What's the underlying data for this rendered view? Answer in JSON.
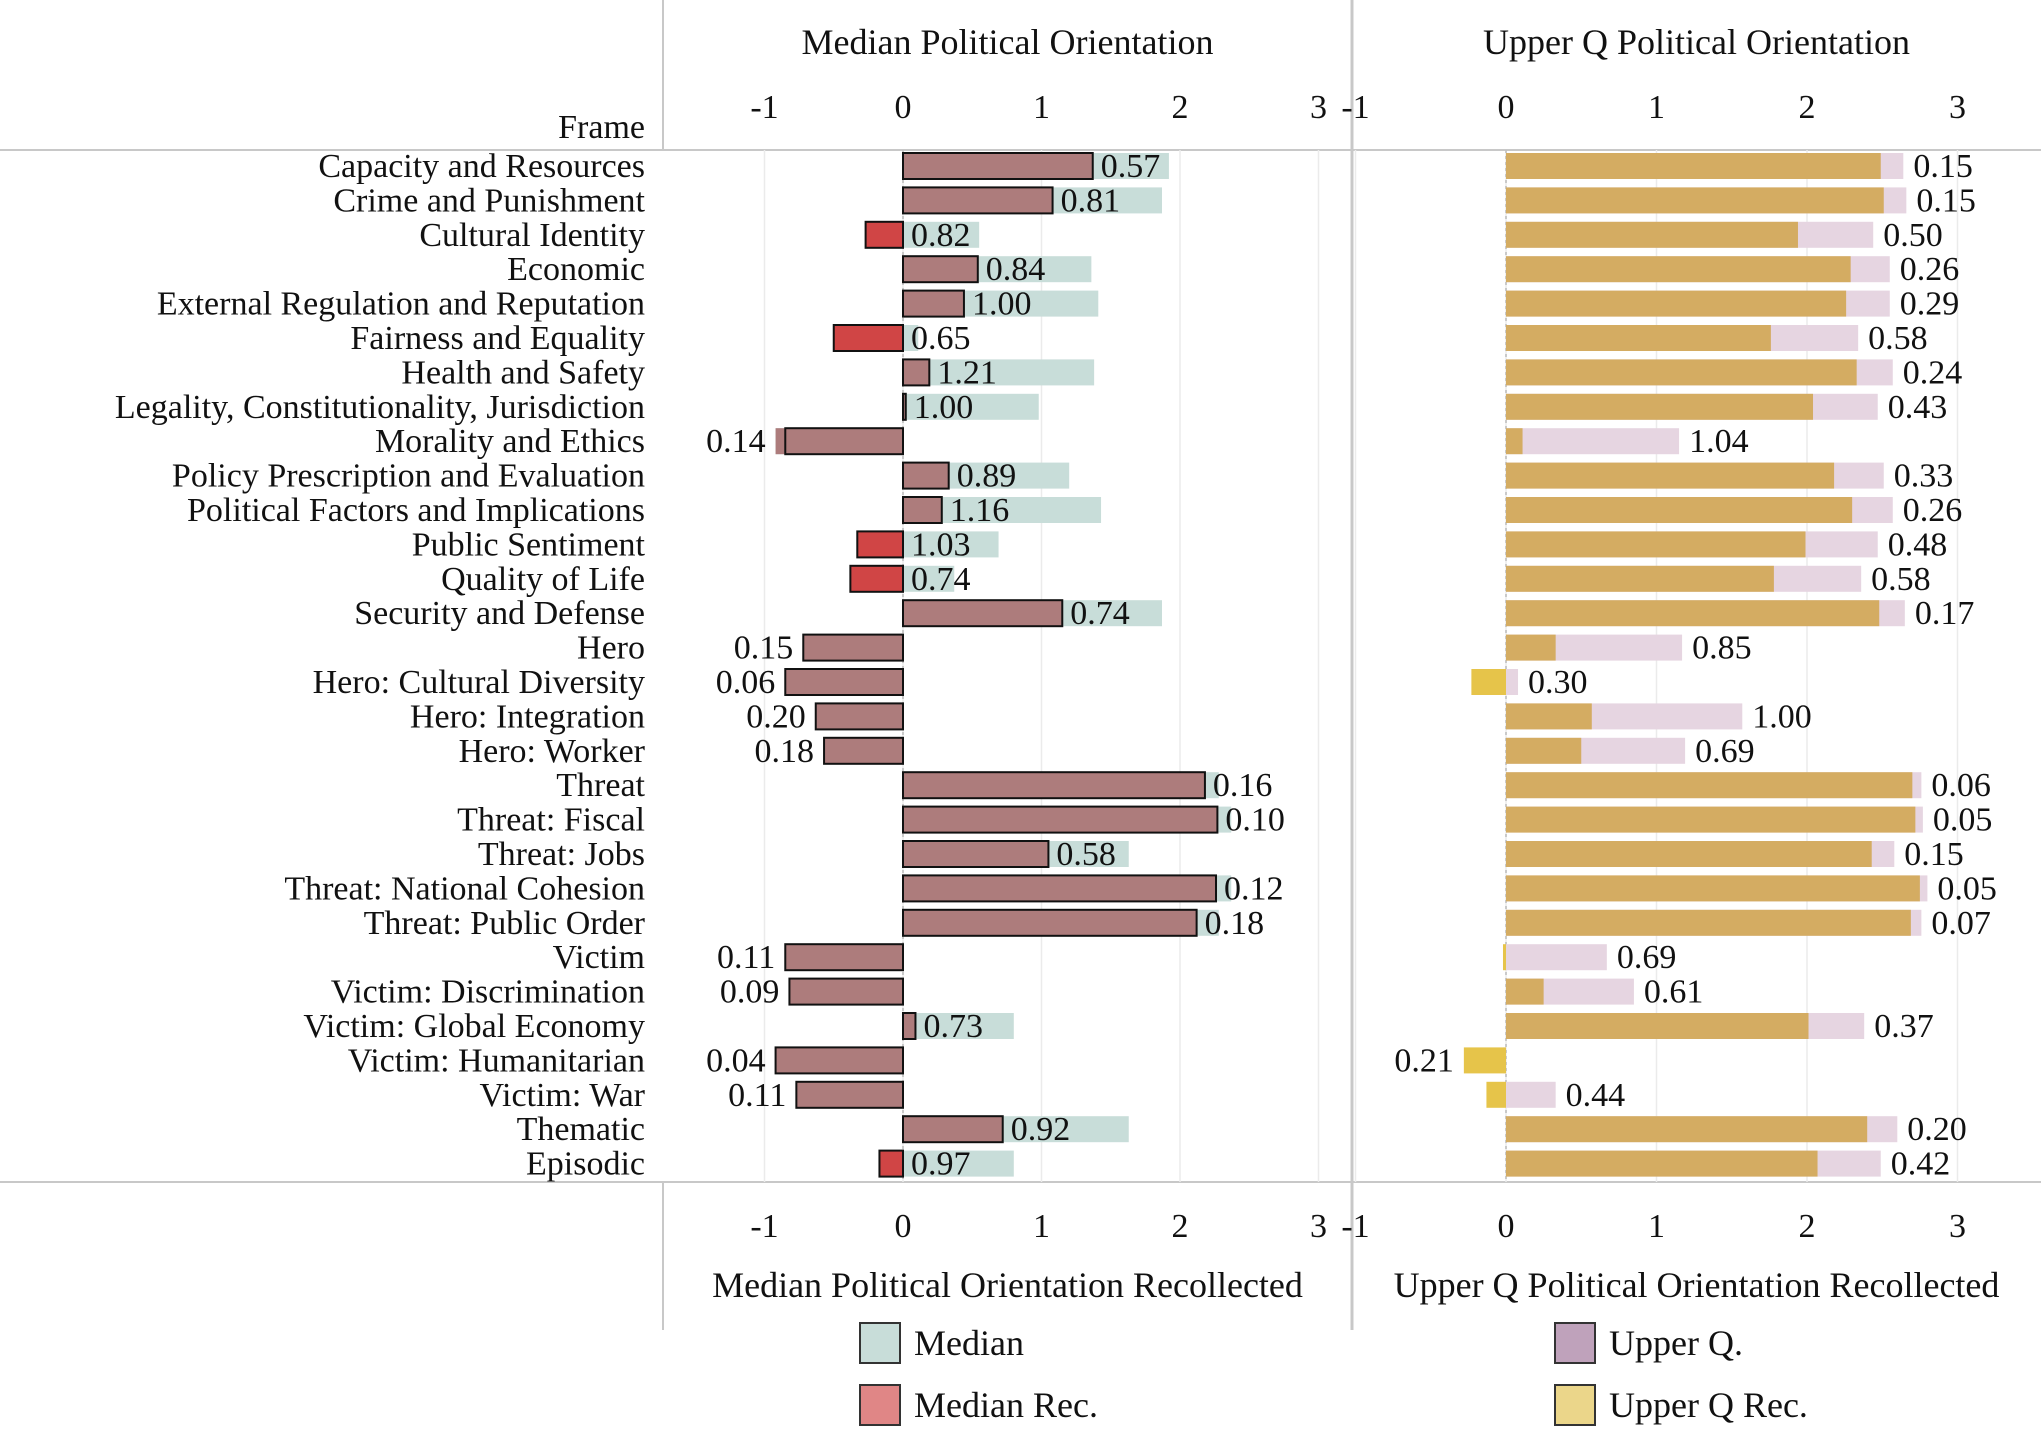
{
  "chart_data": {
    "type": "bar",
    "frame_header": "Frame",
    "categories": [
      "Capacity and Resources",
      "Crime and Punishment",
      "Cultural Identity",
      "Economic",
      "External Regulation and Reputation",
      "Fairness and Equality",
      "Health and Safety",
      "Legality, Constitutionality, Jurisdiction",
      "Morality and Ethics",
      "Policy Prescription and Evaluation",
      "Political Factors and Implications",
      "Public Sentiment",
      "Quality of Life",
      "Security and Defense",
      "Hero",
      "Hero: Cultural Diversity",
      "Hero: Integration",
      "Hero: Worker",
      "Threat",
      "Threat: Fiscal",
      "Threat: Jobs",
      "Threat: National Cohesion",
      "Threat: Public Order",
      "Victim",
      "Victim: Discrimination",
      "Victim: Global Economy",
      "Victim: Humanitarian",
      "Victim: War",
      "Thematic",
      "Episodic"
    ],
    "panels": [
      {
        "title_top": "Median Political Orientation",
        "title_bottom": "Median Political Orientation Recollected",
        "xlim": [
          -1.5,
          3.2
        ],
        "ticks": [
          -1,
          0,
          1,
          2,
          3
        ],
        "tick_labels": [
          "-1",
          "0",
          "1",
          "2",
          "3"
        ],
        "series": [
          {
            "name": "Median",
            "color": "#c8ddd9",
            "values": [
              1.92,
              1.87,
              0.55,
              1.36,
              1.41,
              0.11,
              1.38,
              0.98,
              -0.92,
              1.2,
              1.43,
              0.69,
              0.37,
              1.87,
              -0.72,
              -0.85,
              -0.63,
              -0.57,
              2.28,
              2.37,
              1.63,
              2.37,
              2.28,
              -0.85,
              -0.82,
              0.8,
              -0.92,
              -0.77,
              1.63,
              0.8
            ]
          },
          {
            "name": "Median Rec.",
            "color": "#d06060",
            "values": [
              1.37,
              1.08,
              -0.27,
              0.54,
              0.44,
              -0.5,
              0.19,
              0.02,
              -0.85,
              0.33,
              0.28,
              -0.33,
              -0.38,
              1.15,
              -0.72,
              -0.85,
              -0.63,
              -0.57,
              2.18,
              2.27,
              1.05,
              2.26,
              2.12,
              -0.85,
              -0.82,
              0.09,
              -0.92,
              -0.77,
              0.72,
              -0.17
            ]
          }
        ],
        "labels": [
          "0.57",
          "0.81",
          "0.82",
          "0.84",
          "1.00",
          "0.65",
          "1.21",
          "1.00",
          "0.14",
          "0.89",
          "1.16",
          "1.03",
          "0.74",
          "0.74",
          "0.15",
          "0.06",
          "0.20",
          "0.18",
          "0.16",
          "0.10",
          "0.58",
          "0.12",
          "0.18",
          "0.11",
          "0.09",
          "0.73",
          "0.04",
          "0.11",
          "0.92",
          "0.97"
        ]
      },
      {
        "title_top": "Upper Q Political Orientation",
        "title_bottom": "Upper Q Political Orientation Recollected",
        "xlim": [
          -1.05,
          3.3
        ],
        "ticks": [
          -1,
          0,
          1,
          2,
          3
        ],
        "tick_labels": [
          "-1",
          "0",
          "1",
          "2",
          "3"
        ],
        "series": [
          {
            "name": "Upper Q.",
            "color": "#e6d5e1",
            "values": [
              2.64,
              2.66,
              2.44,
              2.55,
              2.55,
              2.34,
              2.57,
              2.47,
              1.15,
              2.51,
              2.57,
              2.47,
              2.36,
              2.65,
              1.17,
              0.08,
              1.57,
              1.19,
              2.76,
              2.77,
              2.58,
              2.8,
              2.76,
              0.67,
              0.85,
              2.38,
              -0.02,
              0.33,
              2.6,
              2.49
            ]
          },
          {
            "name": "Upper Q Rec.",
            "color": "#d4ac62",
            "values": [
              2.49,
              2.51,
              1.94,
              2.29,
              2.26,
              1.76,
              2.33,
              2.04,
              0.11,
              2.18,
              2.3,
              1.99,
              1.78,
              2.48,
              0.33,
              -0.23,
              0.57,
              0.5,
              2.7,
              2.72,
              2.43,
              2.75,
              2.69,
              -0.02,
              0.25,
              2.01,
              -0.28,
              -0.13,
              2.4,
              2.07
            ]
          }
        ],
        "labels": [
          "0.15",
          "0.15",
          "0.50",
          "0.26",
          "0.29",
          "0.58",
          "0.24",
          "0.43",
          "1.04",
          "0.33",
          "0.26",
          "0.48",
          "0.58",
          "0.17",
          "0.85",
          "0.30",
          "1.00",
          "0.69",
          "0.06",
          "0.05",
          "0.15",
          "0.05",
          "0.07",
          "0.69",
          "0.61",
          "0.37",
          "0.21",
          "0.44",
          "0.20",
          "0.42"
        ]
      }
    ],
    "legend": [
      {
        "label": "Median",
        "color": "#c8ddd9"
      },
      {
        "label": "Median Rec.",
        "color": "#e08686"
      },
      {
        "label": "Upper Q.",
        "color": "#bfa2bb"
      },
      {
        "label": "Upper Q Rec.",
        "color": "#ebd68a"
      }
    ],
    "colors": {
      "median_rec_positive": "#ad7c7c",
      "median_rec_negative": "#d04545",
      "upper_rec_positive": "#d4ac62",
      "upper_rec_negative": "#e6c44a",
      "grid": "#ebebeb",
      "frame_line": "#c8c8c8"
    },
    "legend_placement": "bottom",
    "grid": true
  }
}
